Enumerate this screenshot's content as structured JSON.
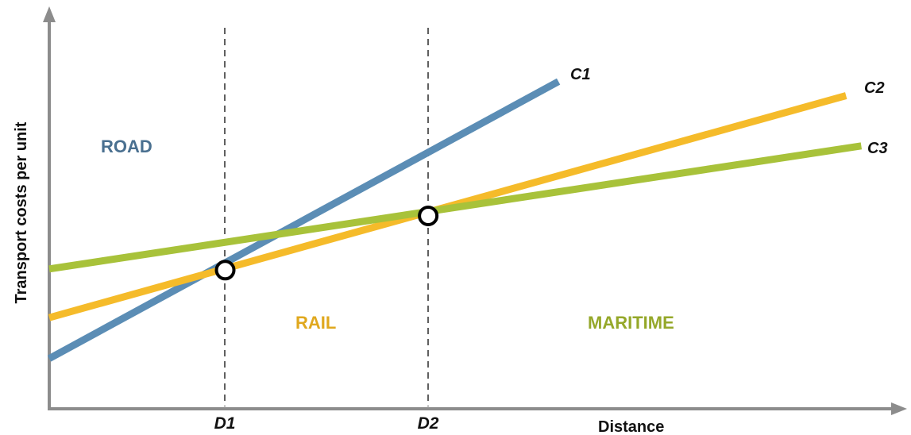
{
  "chart_data": {
    "type": "line",
    "ylabel": "Transport costs per unit",
    "xlabel": "Distance",
    "x_ticks": [
      "D1",
      "D2"
    ],
    "series": [
      {
        "name": "C1",
        "color": "#5b8db5",
        "points": [
          [
            0.0,
            0.128
          ],
          [
            0.602,
            0.833
          ]
        ]
      },
      {
        "name": "C2",
        "color": "#f5bb2a",
        "points": [
          [
            0.0,
            0.232
          ],
          [
            0.942,
            0.797
          ]
        ]
      },
      {
        "name": "C3",
        "color": "#a8c23a",
        "points": [
          [
            0.0,
            0.356
          ],
          [
            0.96,
            0.669
          ]
        ]
      }
    ],
    "breakeven_points": [
      [
        0.208,
        0.353
      ],
      [
        0.448,
        0.491
      ]
    ],
    "regions": [
      {
        "label": "ROAD",
        "color": "#4a7090"
      },
      {
        "label": "RAIL",
        "color": "#e0a81e"
      },
      {
        "label": "MARITIME",
        "color": "#95a82a"
      }
    ]
  }
}
